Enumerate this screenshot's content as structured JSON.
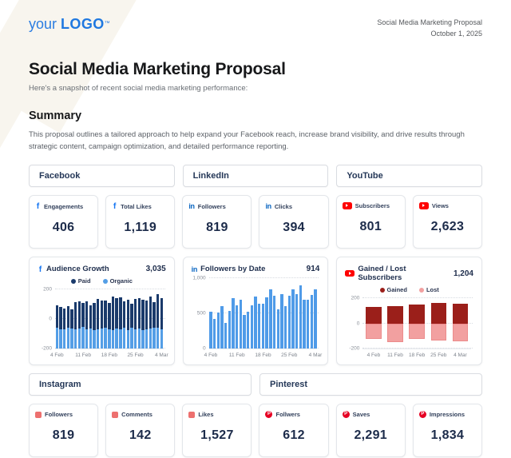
{
  "header": {
    "logo": {
      "your": "your",
      "logo": "LOGO",
      "tm": "™"
    },
    "right_line1": "Social Media Marketing Proposal",
    "right_line2": "October 1, 2025"
  },
  "title": "Social Media Marketing Proposal",
  "subtitle": "Here's a snapshot of recent social media marketing performance:",
  "summary": {
    "heading": "Summary",
    "body": "This proposal outlines a tailored approach to help expand your Facebook reach, increase brand visibility, and drive results through strategic content, campaign optimization, and detailed performance reporting."
  },
  "platform_headers_row1": [
    "Facebook",
    "LinkedIn",
    "YouTube"
  ],
  "platform_headers_row2": [
    "Instagram",
    "Pinterest"
  ],
  "stat_cards_row1": [
    {
      "icon": "facebook-icon",
      "label": "Engagements",
      "value": "406"
    },
    {
      "icon": "facebook-icon",
      "label": "Total Likes",
      "value": "1,119"
    },
    {
      "icon": "linkedin-icon",
      "label": "Followers",
      "value": "819"
    },
    {
      "icon": "linkedin-icon",
      "label": "Clicks",
      "value": "394"
    },
    {
      "icon": "youtube-icon",
      "label": "Subscribers",
      "value": "801"
    },
    {
      "icon": "youtube-icon",
      "label": "Views",
      "value": "2,623"
    }
  ],
  "stat_cards_row2": [
    {
      "icon": "instagram-icon",
      "label": "Followers",
      "value": "819"
    },
    {
      "icon": "instagram-icon",
      "label": "Comments",
      "value": "142"
    },
    {
      "icon": "instagram-icon",
      "label": "Likes",
      "value": "1,527"
    },
    {
      "icon": "pinterest-icon",
      "label": "Follwers",
      "value": "612"
    },
    {
      "icon": "pinterest-icon",
      "label": "Saves",
      "value": "2,291"
    },
    {
      "icon": "pinterest-icon",
      "label": "Impressions",
      "value": "1,834"
    }
  ],
  "chart_data": [
    {
      "type": "bar",
      "icon": "facebook-icon",
      "title": "Audience Growth",
      "total": "3,035",
      "legend": [
        {
          "label": "Paid",
          "color": "#1a3a6b"
        },
        {
          "label": "Organic",
          "color": "#549ee6"
        }
      ],
      "ylim": [
        -200,
        200
      ],
      "yticks": [
        {
          "v": 200,
          "label": "200"
        },
        {
          "v": 0,
          "label": "0"
        },
        {
          "v": -200,
          "label": "-200"
        }
      ],
      "n": 29,
      "bar_ratio": 0.72,
      "xticks": [
        {
          "i": 0,
          "label": "4 Feb"
        },
        {
          "i": 7,
          "label": "11 Feb"
        },
        {
          "i": 14,
          "label": "18 Feb"
        },
        {
          "i": 21,
          "label": "25 Feb"
        },
        {
          "i": 28,
          "label": "4 Mar"
        }
      ],
      "series": [
        {
          "name": "Organic",
          "color": "#549ee6",
          "base": -200,
          "values": [
            -60,
            -70,
            -72,
            -58,
            -65,
            -70,
            -62,
            -55,
            -70,
            -65,
            -75,
            -70,
            -62,
            -56,
            -70,
            -75,
            -65,
            -70,
            -60,
            -75,
            -56,
            -70,
            -65,
            -75,
            -70,
            -65,
            -60,
            -56,
            -68
          ]
        },
        {
          "name": "Paid",
          "color": "#1a3a6b",
          "base": [
            -60,
            -70,
            -72,
            -58,
            -65,
            -70,
            -62,
            -55,
            -70,
            -65,
            -75,
            -70,
            -62,
            -56,
            -70,
            -75,
            -65,
            -70,
            -60,
            -75,
            -56,
            -70,
            -65,
            -75,
            -70,
            -65,
            -60,
            -56,
            -68
          ],
          "values": [
            95,
            82,
            72,
            85,
            68,
            115,
            120,
            110,
            118,
            95,
            110,
            138,
            125,
            128,
            108,
            152,
            140,
            145,
            120,
            132,
            105,
            138,
            140,
            133,
            123,
            152,
            114,
            168,
            140
          ]
        }
      ]
    },
    {
      "type": "bar",
      "icon": "linkedin-icon",
      "title": "Followers by Date",
      "total": "914",
      "legend": [],
      "ylim": [
        0,
        1000
      ],
      "yticks": [
        {
          "v": 1000,
          "label": "1,000"
        },
        {
          "v": 500,
          "label": "500"
        },
        {
          "v": 0,
          "label": "0"
        }
      ],
      "n": 29,
      "bar_ratio": 0.72,
      "xticks": [
        {
          "i": 0,
          "label": "4 Feb"
        },
        {
          "i": 7,
          "label": "11 Feb"
        },
        {
          "i": 14,
          "label": "18 Feb"
        },
        {
          "i": 21,
          "label": "25 Feb"
        },
        {
          "i": 28,
          "label": "4 Mar"
        }
      ],
      "series": [
        {
          "name": "Followers",
          "color": "#4f9be8",
          "base": 0,
          "values": [
            530,
            420,
            510,
            600,
            370,
            540,
            720,
            610,
            700,
            480,
            520,
            620,
            745,
            640,
            640,
            730,
            840,
            750,
            555,
            780,
            605,
            755,
            845,
            775,
            905,
            690,
            700,
            760,
            840
          ]
        }
      ]
    },
    {
      "type": "bar",
      "icon": "youtube-icon",
      "title": "Gained / Lost Subscribers",
      "total": "1,204",
      "legend": [
        {
          "label": "Gained",
          "color": "#9b1f1a"
        },
        {
          "label": "Lost",
          "color": "#f2a0a0"
        }
      ],
      "ylim": [
        -200,
        200
      ],
      "yticks": [
        {
          "v": 200,
          "label": "200"
        },
        {
          "v": 0,
          "label": "0"
        },
        {
          "v": -200,
          "label": "-200"
        }
      ],
      "n": 5,
      "bar_ratio": 0.72,
      "xticks": [
        {
          "i": 0,
          "label": "4 Feb"
        },
        {
          "i": 1,
          "label": "11 Feb"
        },
        {
          "i": 2,
          "label": "18 Feb"
        },
        {
          "i": 3,
          "label": "25 Feb"
        },
        {
          "i": 4,
          "label": "4 Mar"
        }
      ],
      "series": [
        {
          "name": "Gained",
          "color": "#9b1f1a",
          "base": 0,
          "values": [
            130,
            135,
            150,
            163,
            158
          ]
        },
        {
          "name": "Lost",
          "color": "#f2a0a0",
          "border": "#ec8b8b",
          "base": 0,
          "values": [
            -125,
            -145,
            -120,
            -135,
            -140
          ]
        }
      ]
    }
  ]
}
